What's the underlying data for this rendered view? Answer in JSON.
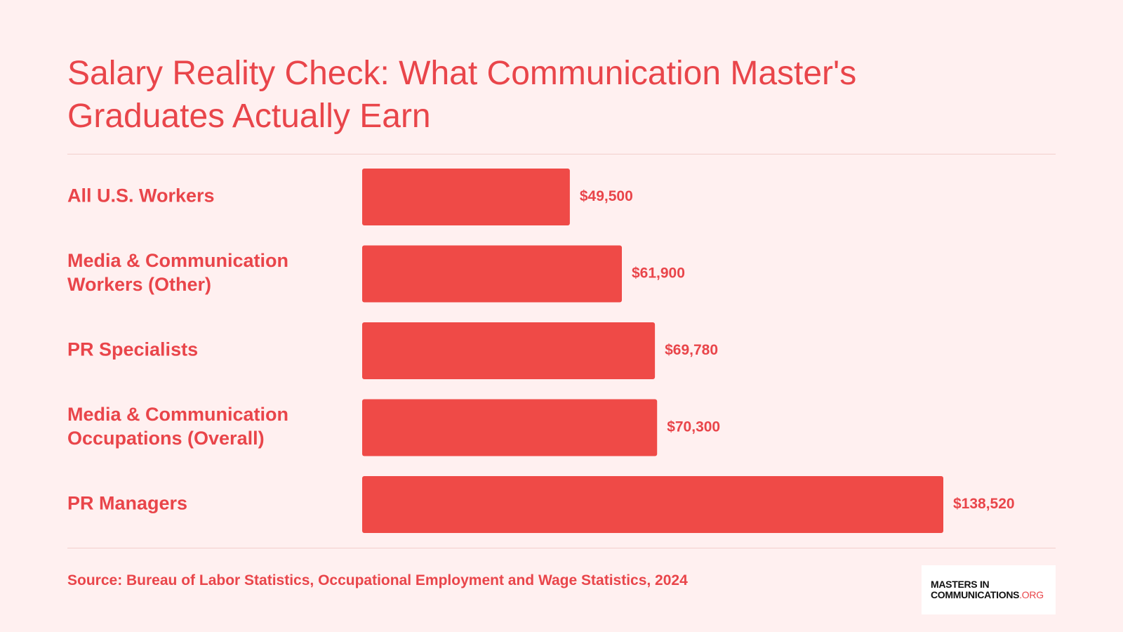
{
  "title": "Salary Reality Check: What Communication Master's Graduates Actually Earn",
  "source": "Source: Bureau of Labor Statistics, Occupational Employment and Wage Statistics, 2024",
  "logo": {
    "line1": "MASTERS IN",
    "line2": "COMMUNICATIONS",
    "suffix": ".ORG"
  },
  "colors": {
    "accent": "#ef4a47",
    "text": "#e9454a",
    "background": "#fff0f0"
  },
  "chart_data": {
    "type": "bar",
    "orientation": "horizontal",
    "categories": [
      [
        "All U.S. Workers"
      ],
      [
        "Media & Communication",
        "Workers (Other)"
      ],
      [
        "PR Specialists"
      ],
      [
        "Media & Communication",
        "Occupations (Overall)"
      ],
      [
        "PR Managers"
      ]
    ],
    "values": [
      49500,
      61900,
      69780,
      70300,
      138520
    ],
    "value_labels": [
      "$49,500",
      "$61,900",
      "$69,780",
      "$70,300",
      "$138,520"
    ],
    "xlim": [
      0,
      138520
    ],
    "grid": false,
    "legend": "none"
  }
}
